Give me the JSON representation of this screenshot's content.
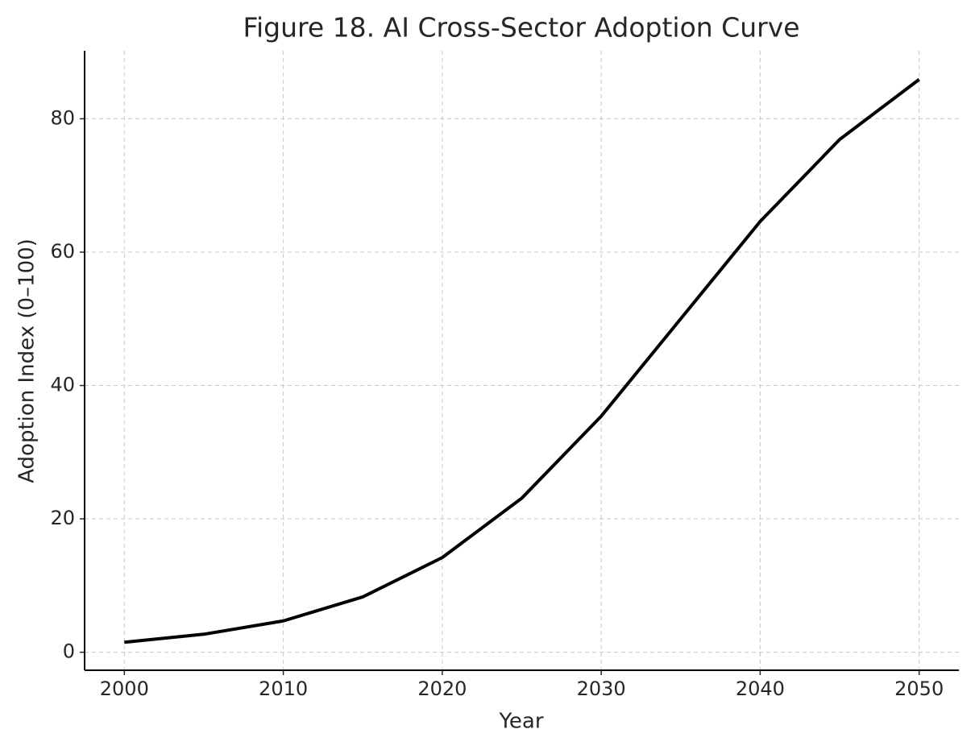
{
  "chart_data": {
    "type": "line",
    "title": "Figure 18. AI Cross-Sector Adoption Curve",
    "x_label": "Year",
    "y_label": "Adoption Index (0–100)",
    "x": [
      2000,
      2005,
      2010,
      2015,
      2020,
      2025,
      2030,
      2035,
      2040,
      2045,
      2050
    ],
    "series": [
      {
        "color": "#000000",
        "values": [
          1.5,
          2.7,
          4.7,
          8.3,
          14.2,
          23.1,
          35.4,
          50,
          64.6,
          76.9,
          85.9
        ]
      }
    ],
    "xlim": [
      1997.5,
      2052.5
    ],
    "xticks": [
      2000,
      2010,
      2020,
      2030,
      2040,
      2050
    ],
    "ylim": [
      -2.7,
      90.2
    ],
    "yticks": [
      0,
      20,
      40,
      60,
      80
    ],
    "grid": true
  }
}
